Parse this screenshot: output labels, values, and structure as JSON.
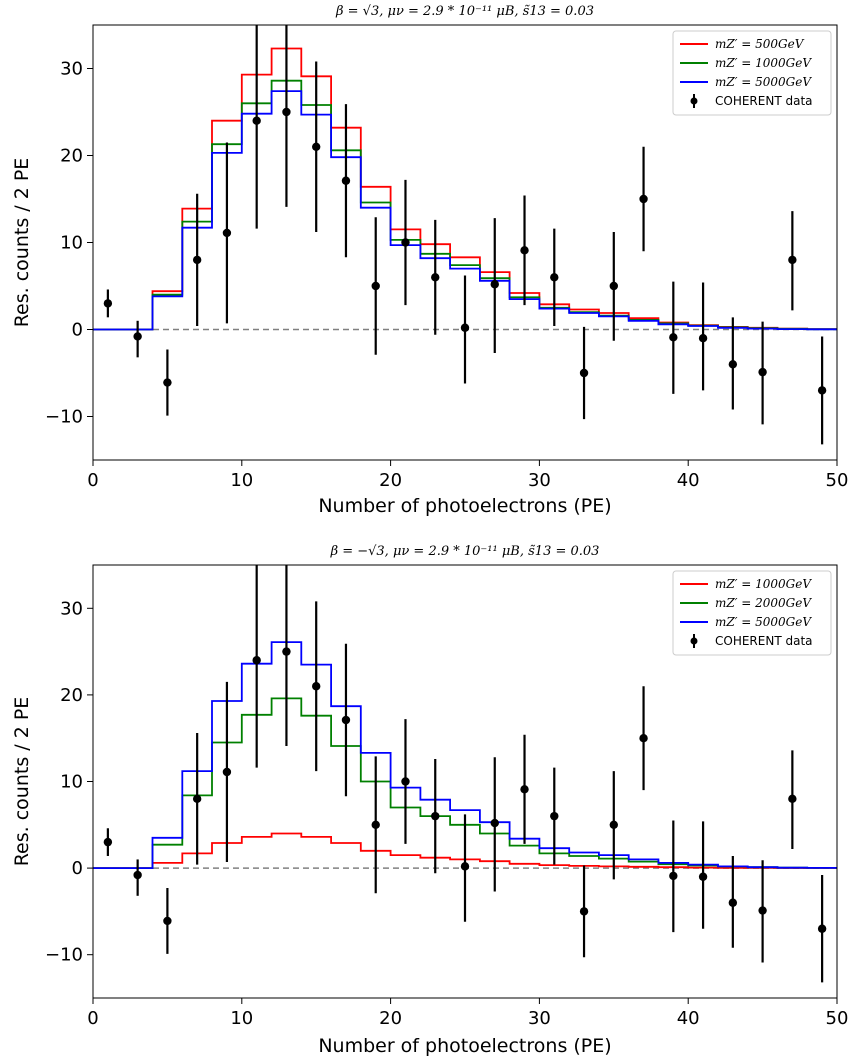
{
  "chart_data": [
    {
      "type": "line",
      "title": "β = √3, μν = 2.9 * 10⁻¹¹ μB, s̃13 = 0.03",
      "xlabel": "Number of photoelectrons (PE)",
      "ylabel": "Res. counts / 2 PE",
      "xlim": [
        0,
        50
      ],
      "ylim": [
        -15,
        35
      ],
      "xticks": [
        "0",
        "10",
        "20",
        "30",
        "40",
        "50"
      ],
      "yticks": [
        "−10",
        "0",
        "10",
        "20",
        "30"
      ],
      "legend_position": "top-right",
      "bin_edges": [
        0,
        2,
        4,
        6,
        8,
        10,
        12,
        14,
        16,
        18,
        20,
        22,
        24,
        26,
        28,
        30,
        32,
        34,
        36,
        38,
        40,
        42,
        44,
        46,
        48,
        50
      ],
      "series": [
        {
          "name": "mZ′ = 500GeV",
          "color": "#ff0000",
          "values": [
            0,
            0,
            4.4,
            13.9,
            24.0,
            29.3,
            32.3,
            29.1,
            23.2,
            16.4,
            11.5,
            9.8,
            8.3,
            6.6,
            4.2,
            2.9,
            2.3,
            1.9,
            1.3,
            0.8,
            0.5,
            0.3,
            0.2,
            0.1,
            0.05
          ]
        },
        {
          "name": "mZ′ = 1000GeV",
          "color": "#008000",
          "values": [
            0,
            0,
            4.0,
            12.4,
            21.3,
            26.0,
            28.6,
            25.8,
            20.6,
            14.6,
            10.3,
            8.7,
            7.4,
            5.9,
            3.7,
            2.5,
            2.0,
            1.6,
            1.1,
            0.7,
            0.45,
            0.25,
            0.15,
            0.08,
            0.03
          ]
        },
        {
          "name": "mZ′ = 5000GeV",
          "color": "#0000ff",
          "values": [
            0,
            0,
            3.8,
            11.7,
            20.3,
            24.8,
            27.4,
            24.7,
            19.8,
            14.0,
            9.7,
            8.2,
            7.0,
            5.6,
            3.5,
            2.4,
            1.9,
            1.5,
            1.0,
            0.6,
            0.4,
            0.2,
            0.1,
            0.05,
            0.02
          ]
        }
      ],
      "data_series": {
        "name": "COHERENT data",
        "x": [
          1,
          3,
          5,
          7,
          9,
          11,
          13,
          15,
          17,
          19,
          21,
          23,
          25,
          27,
          29,
          31,
          33,
          35,
          37,
          39,
          41,
          43,
          45,
          47,
          49
        ],
        "y": [
          3,
          -0.8,
          -6.1,
          8,
          11.1,
          24,
          25,
          21,
          17.1,
          5,
          10,
          6,
          0.2,
          5.2,
          9.1,
          6,
          -5,
          5,
          15,
          -0.9,
          -1,
          -4,
          -4.9,
          8,
          -7
        ],
        "err_low": [
          1.6,
          2.4,
          3.8,
          7.6,
          10.4,
          12.4,
          10.9,
          9.8,
          8.8,
          7.9,
          7.2,
          6.6,
          6.4,
          7.9,
          6.3,
          5.6,
          5.3,
          6.3,
          6.0,
          6.5,
          6.0,
          5.2,
          6.0,
          5.8,
          6.2
        ],
        "err_high": [
          1.6,
          1.8,
          3.8,
          7.6,
          10.4,
          12.4,
          10.9,
          9.8,
          8.8,
          7.9,
          7.2,
          6.6,
          6.0,
          7.6,
          6.3,
          5.6,
          5.3,
          6.2,
          6.0,
          6.4,
          6.4,
          5.4,
          5.8,
          5.6,
          6.2
        ]
      }
    },
    {
      "type": "line",
      "title": "β = −√3, μν = 2.9 * 10⁻¹¹ μB, s̃13 = 0.03",
      "xlabel": "Number of photoelectrons (PE)",
      "ylabel": "Res. counts / 2 PE",
      "xlim": [
        0,
        50
      ],
      "ylim": [
        -15,
        35
      ],
      "xticks": [
        "0",
        "10",
        "20",
        "30",
        "40",
        "50"
      ],
      "yticks": [
        "−10",
        "0",
        "10",
        "20",
        "30"
      ],
      "legend_position": "top-right",
      "bin_edges": [
        0,
        2,
        4,
        6,
        8,
        10,
        12,
        14,
        16,
        18,
        20,
        22,
        24,
        26,
        28,
        30,
        32,
        34,
        36,
        38,
        40,
        42,
        44,
        46,
        48,
        50
      ],
      "series": [
        {
          "name": "mZ′ = 1000GeV",
          "color": "#ff0000",
          "values": [
            0,
            0,
            0.6,
            1.7,
            2.9,
            3.6,
            4.0,
            3.6,
            2.9,
            2.0,
            1.5,
            1.2,
            1.0,
            0.8,
            0.5,
            0.35,
            0.25,
            0.2,
            0.15,
            0.1,
            0.06,
            0.04,
            0.02,
            0.01,
            0.01
          ]
        },
        {
          "name": "mZ′ = 2000GeV",
          "color": "#008000",
          "values": [
            0,
            0,
            2.7,
            8.4,
            14.5,
            17.7,
            19.6,
            17.6,
            14.1,
            10.0,
            7.0,
            6.0,
            5.0,
            4.0,
            2.6,
            1.7,
            1.4,
            1.1,
            0.75,
            0.45,
            0.3,
            0.18,
            0.1,
            0.05,
            0.02
          ]
        },
        {
          "name": "mZ′ = 5000GeV",
          "color": "#0000ff",
          "values": [
            0,
            0,
            3.5,
            11.2,
            19.3,
            23.6,
            26.1,
            23.5,
            18.7,
            13.3,
            9.3,
            7.9,
            6.7,
            5.3,
            3.4,
            2.3,
            1.8,
            1.5,
            1.0,
            0.6,
            0.4,
            0.2,
            0.1,
            0.05,
            0.02
          ]
        }
      ],
      "data_series": {
        "name": "COHERENT data",
        "x": [
          1,
          3,
          5,
          7,
          9,
          11,
          13,
          15,
          17,
          19,
          21,
          23,
          25,
          27,
          29,
          31,
          33,
          35,
          37,
          39,
          41,
          43,
          45,
          47,
          49
        ],
        "y": [
          3,
          -0.8,
          -6.1,
          8,
          11.1,
          24,
          25,
          21,
          17.1,
          5,
          10,
          6,
          0.2,
          5.2,
          9.1,
          6,
          -5,
          5,
          15,
          -0.9,
          -1,
          -4,
          -4.9,
          8,
          -7
        ],
        "err_low": [
          1.6,
          2.4,
          3.8,
          7.6,
          10.4,
          12.4,
          10.9,
          9.8,
          8.8,
          7.9,
          7.2,
          6.6,
          6.4,
          7.9,
          6.3,
          5.6,
          5.3,
          6.3,
          6.0,
          6.5,
          6.0,
          5.2,
          6.0,
          5.8,
          6.2
        ],
        "err_high": [
          1.6,
          1.8,
          3.8,
          7.6,
          10.4,
          12.4,
          10.9,
          9.8,
          8.8,
          7.9,
          7.2,
          6.6,
          6.0,
          7.6,
          6.3,
          5.6,
          5.3,
          6.2,
          6.0,
          6.4,
          6.4,
          5.4,
          5.8,
          5.6,
          6.2
        ]
      }
    }
  ]
}
